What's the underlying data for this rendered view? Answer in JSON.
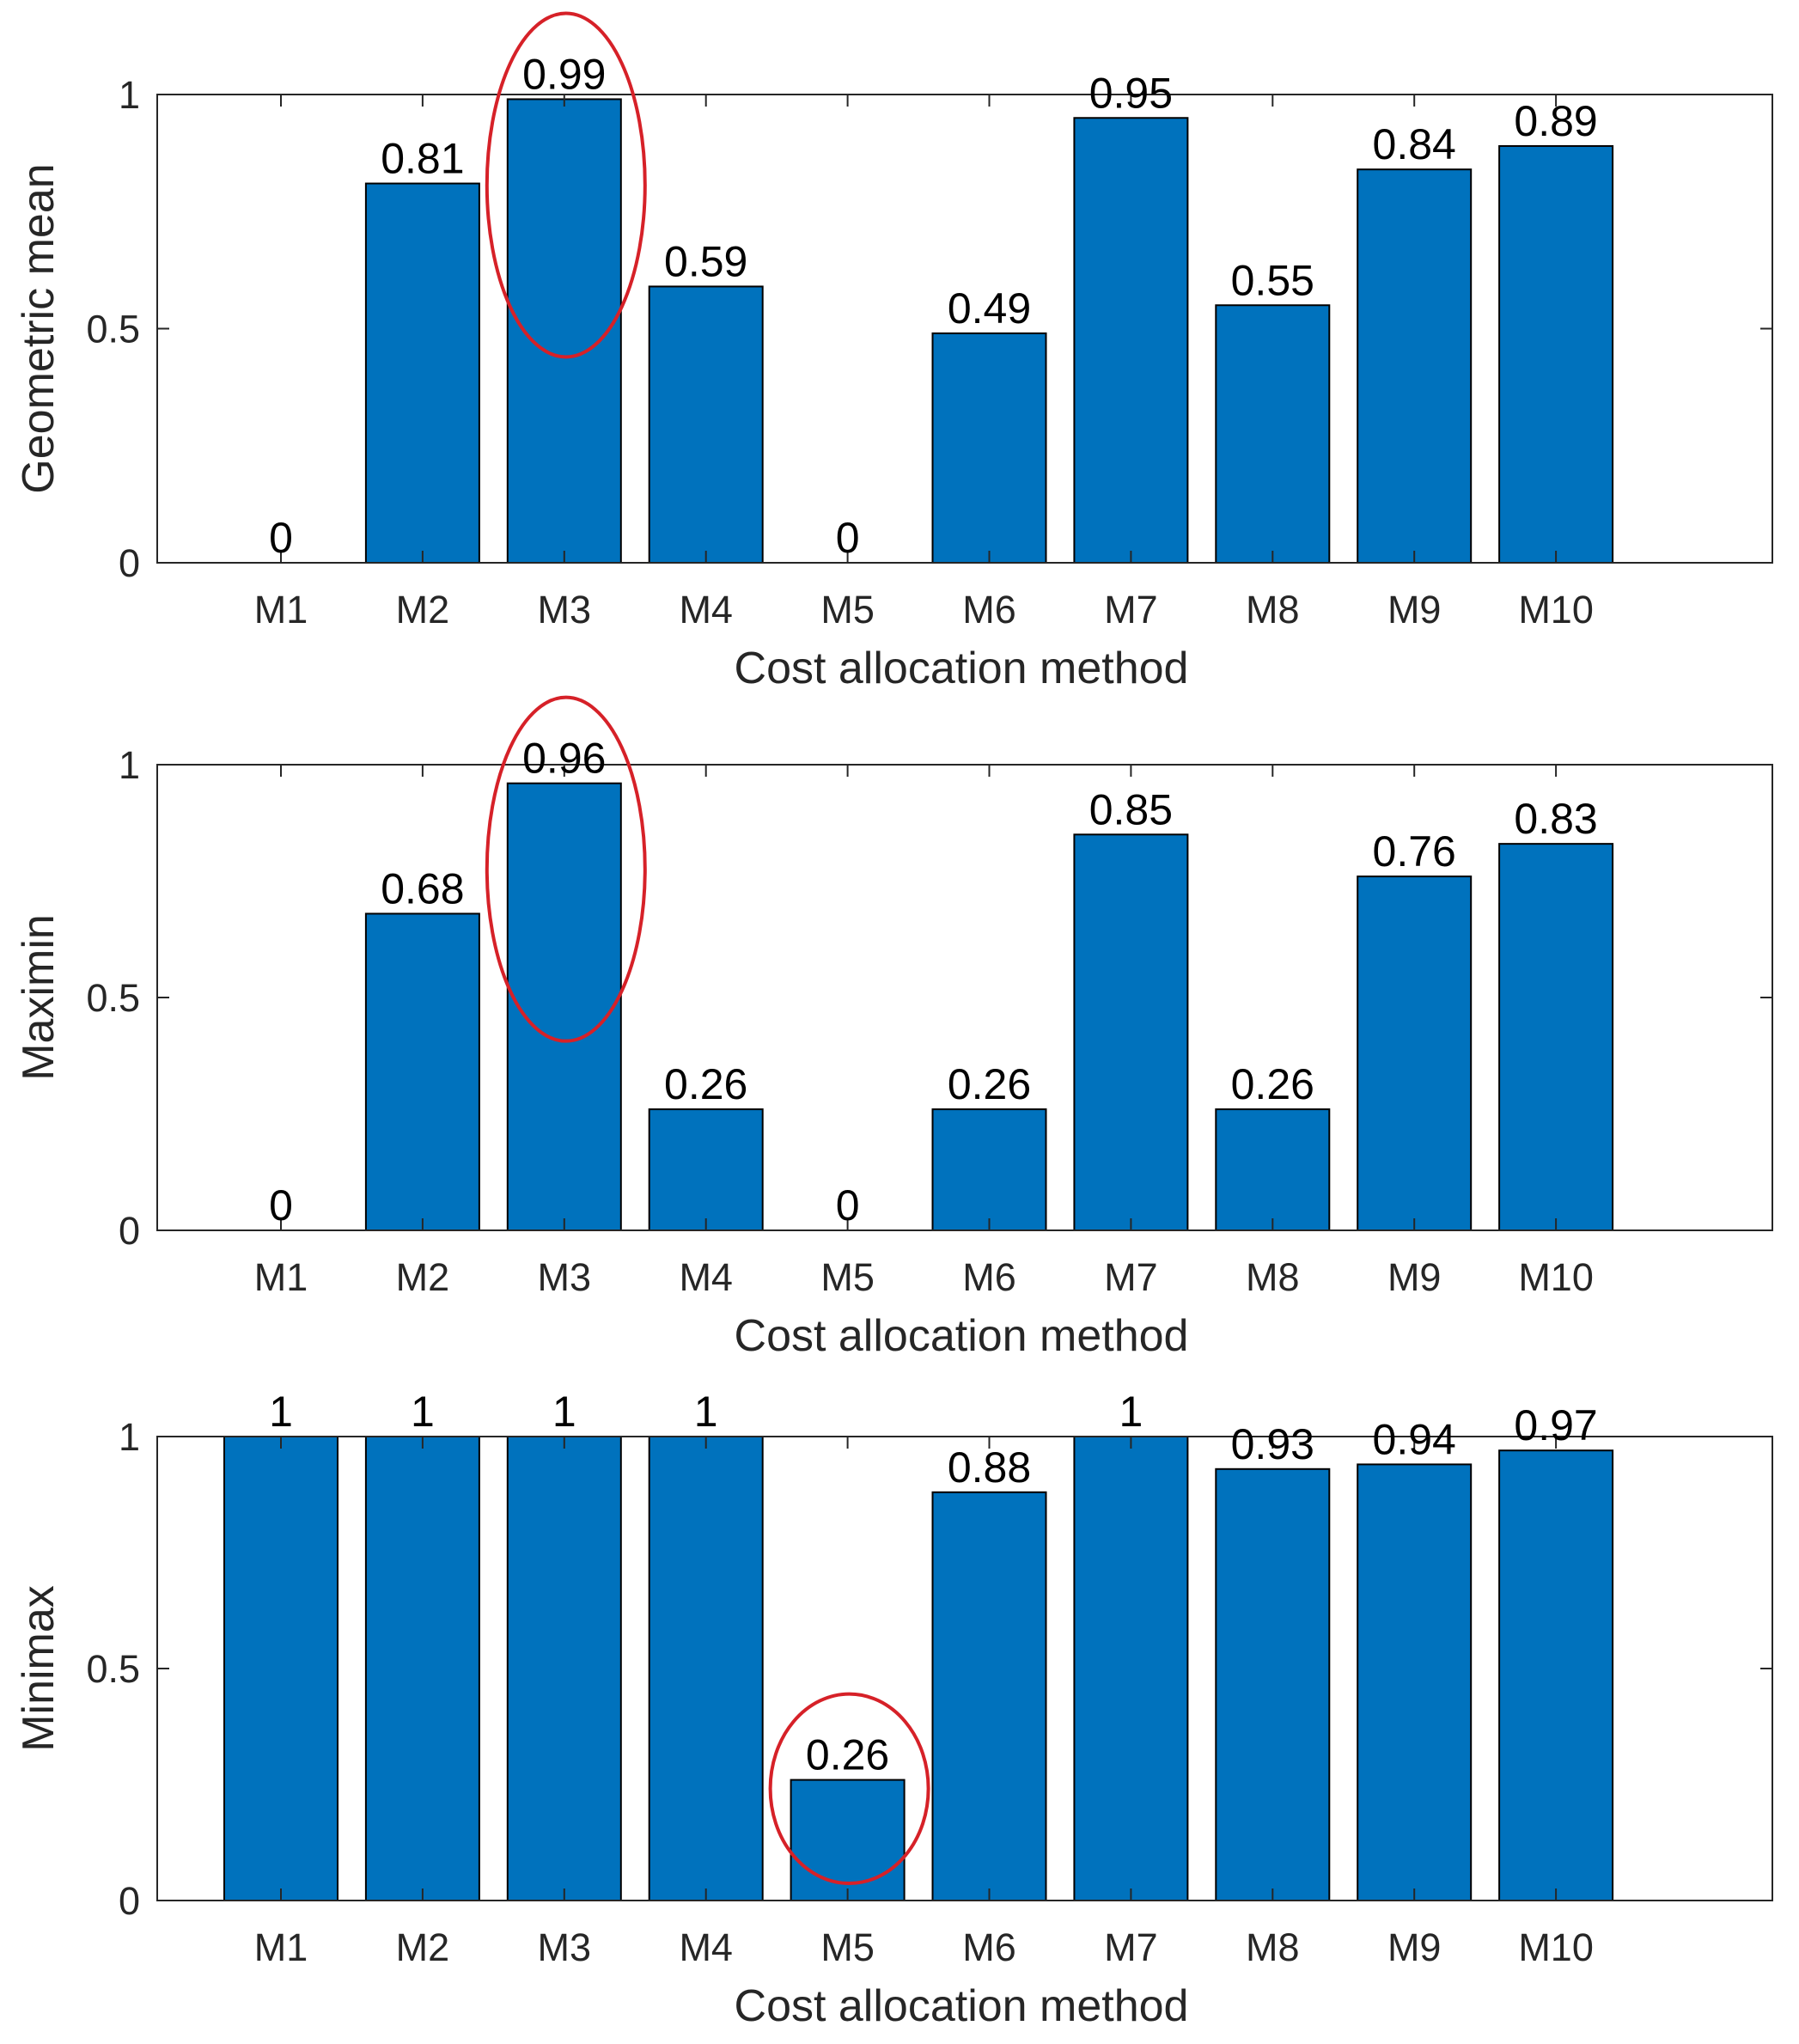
{
  "colors": {
    "bar_fill": "#0072BD",
    "bar_edge": "#000000",
    "axes": "#262626",
    "highlight": "#D62128",
    "background": "#ffffff"
  },
  "chart_data": [
    {
      "type": "bar",
      "categories": [
        "M1",
        "M2",
        "M3",
        "M4",
        "M5",
        "M6",
        "M7",
        "M8",
        "M9",
        "M10"
      ],
      "values": [
        0,
        0.81,
        0.99,
        0.59,
        0,
        0.49,
        0.95,
        0.55,
        0.84,
        0.89
      ],
      "data_labels": [
        "0",
        "0.81",
        "0.99",
        "0.59",
        "0",
        "0.49",
        "0.95",
        "0.55",
        "0.84",
        "0.89"
      ],
      "xlabel": "Cost allocation method",
      "ylabel": "Geometric mean",
      "ylim": [
        0,
        1
      ],
      "yticks": [
        0,
        0.5,
        1
      ],
      "ytick_labels": [
        "0",
        "0.5",
        "1"
      ],
      "highlighted_categories": [
        "M3"
      ],
      "grid": false,
      "legend": "none"
    },
    {
      "type": "bar",
      "categories": [
        "M1",
        "M2",
        "M3",
        "M4",
        "M5",
        "M6",
        "M7",
        "M8",
        "M9",
        "M10"
      ],
      "values": [
        0,
        0.68,
        0.96,
        0.26,
        0,
        0.26,
        0.85,
        0.26,
        0.76,
        0.83
      ],
      "data_labels": [
        "0",
        "0.68",
        "0.96",
        "0.26",
        "0",
        "0.26",
        "0.85",
        "0.26",
        "0.76",
        "0.83"
      ],
      "xlabel": "Cost allocation method",
      "ylabel": "Maximin",
      "ylim": [
        0,
        1
      ],
      "yticks": [
        0,
        0.5,
        1
      ],
      "ytick_labels": [
        "0",
        "0.5",
        "1"
      ],
      "highlighted_categories": [
        "M3"
      ],
      "grid": false,
      "legend": "none"
    },
    {
      "type": "bar",
      "categories": [
        "M1",
        "M2",
        "M3",
        "M4",
        "M5",
        "M6",
        "M7",
        "M8",
        "M9",
        "M10"
      ],
      "values": [
        1,
        1,
        1,
        1,
        0.26,
        0.88,
        1,
        0.93,
        0.94,
        0.97
      ],
      "data_labels": [
        "1",
        "1",
        "1",
        "1",
        "0.26",
        "0.88",
        "1",
        "0.93",
        "0.94",
        "0.97"
      ],
      "xlabel": "Cost allocation method",
      "ylabel": "Minimax",
      "ylim": [
        0,
        1
      ],
      "yticks": [
        0,
        0.5,
        1
      ],
      "ytick_labels": [
        "0",
        "0.5",
        "1"
      ],
      "highlighted_categories": [
        "M5"
      ],
      "grid": false,
      "legend": "none"
    }
  ]
}
